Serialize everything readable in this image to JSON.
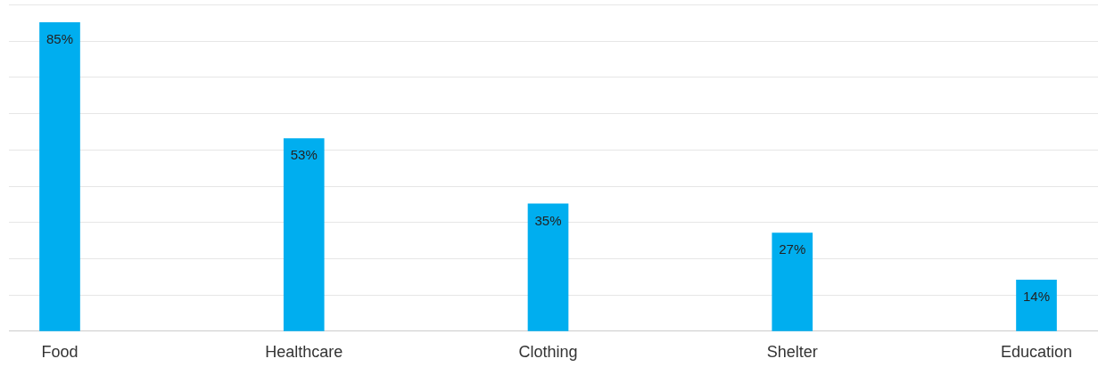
{
  "chart_data": {
    "type": "bar",
    "categories": [
      "Food",
      "Healthcare",
      "Clothing",
      "Shelter",
      "Education"
    ],
    "values": [
      85,
      53,
      35,
      27,
      14
    ],
    "color": "#00aeef",
    "value_labels": [
      "85%",
      "53%",
      "35%",
      "27%",
      "14%"
    ],
    "ylim": [
      0,
      90
    ],
    "yticks": [
      {
        "value": 0,
        "label": null
      },
      {
        "value": 10,
        "label": null
      },
      {
        "value": 20,
        "label": null
      },
      {
        "value": 30,
        "label": null
      },
      {
        "value": 40,
        "label": null
      },
      {
        "value": 50,
        "label": null
      },
      {
        "value": 60,
        "label": null
      },
      {
        "value": 70,
        "label": null
      },
      {
        "value": 80,
        "label": null
      },
      {
        "value": 90,
        "label": null
      }
    ],
    "grid": "y",
    "tick_labels": "x",
    "legend": false
  }
}
